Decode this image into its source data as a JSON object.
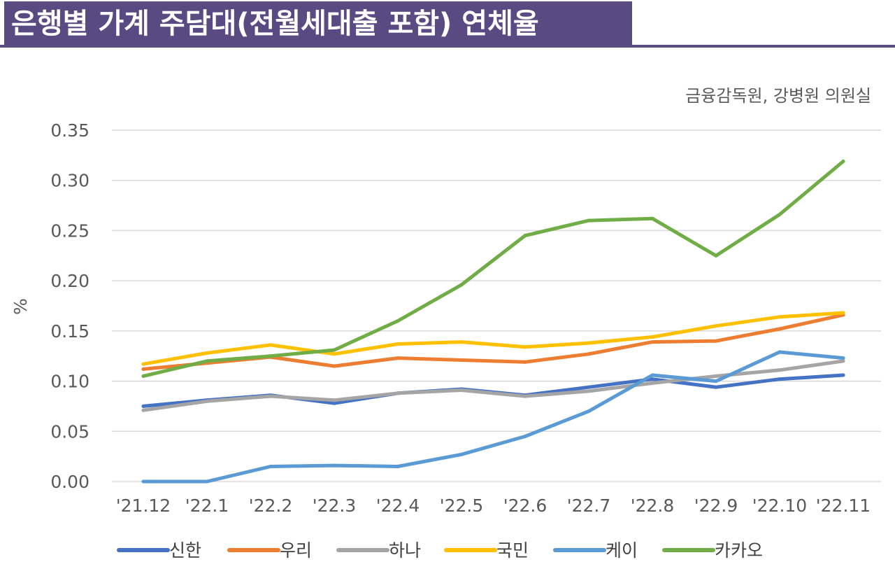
{
  "title": "은행별 가계 주담대(전월세대출 포함) 연체율",
  "chart_data": {
    "type": "line",
    "source": "금융감독원, 강병원 의원실",
    "ylabel": "%",
    "ylim": [
      0,
      0.35
    ],
    "yticks": [
      "0.00",
      "0.05",
      "0.10",
      "0.15",
      "0.20",
      "0.25",
      "0.30",
      "0.35"
    ],
    "grid": true,
    "legend_position": "bottom",
    "categories": [
      "'21.12",
      "'22.1",
      "'22.2",
      "'22.3",
      "'22.4",
      "'22.5",
      "'22.6",
      "'22.7",
      "'22.8",
      "'22.9",
      "'22.10",
      "'22.11"
    ],
    "series": [
      {
        "name": "신한",
        "color": "#4472c4",
        "values": [
          0.075,
          0.081,
          0.086,
          0.078,
          0.088,
          0.092,
          0.086,
          0.094,
          0.102,
          0.094,
          0.102,
          0.106
        ]
      },
      {
        "name": "우리",
        "color": "#ed7d31",
        "values": [
          0.112,
          0.118,
          0.124,
          0.115,
          0.123,
          0.121,
          0.119,
          0.127,
          0.139,
          0.14,
          0.152,
          0.166
        ]
      },
      {
        "name": "하나",
        "color": "#a5a5a5",
        "values": [
          0.071,
          0.08,
          0.085,
          0.081,
          0.088,
          0.091,
          0.085,
          0.09,
          0.098,
          0.105,
          0.111,
          0.12
        ]
      },
      {
        "name": "국민",
        "color": "#ffc000",
        "values": [
          0.117,
          0.128,
          0.136,
          0.127,
          0.137,
          0.139,
          0.134,
          0.138,
          0.144,
          0.155,
          0.164,
          0.168
        ]
      },
      {
        "name": "케이",
        "color": "#5b9bd5",
        "values": [
          0.0,
          0.0,
          0.015,
          0.016,
          0.015,
          0.027,
          0.045,
          0.07,
          0.106,
          0.1,
          0.129,
          0.123
        ]
      },
      {
        "name": "카카오",
        "color": "#70ad47",
        "values": [
          0.105,
          0.12,
          0.125,
          0.131,
          0.16,
          0.196,
          0.245,
          0.26,
          0.262,
          0.225,
          0.266,
          0.319
        ]
      }
    ]
  }
}
